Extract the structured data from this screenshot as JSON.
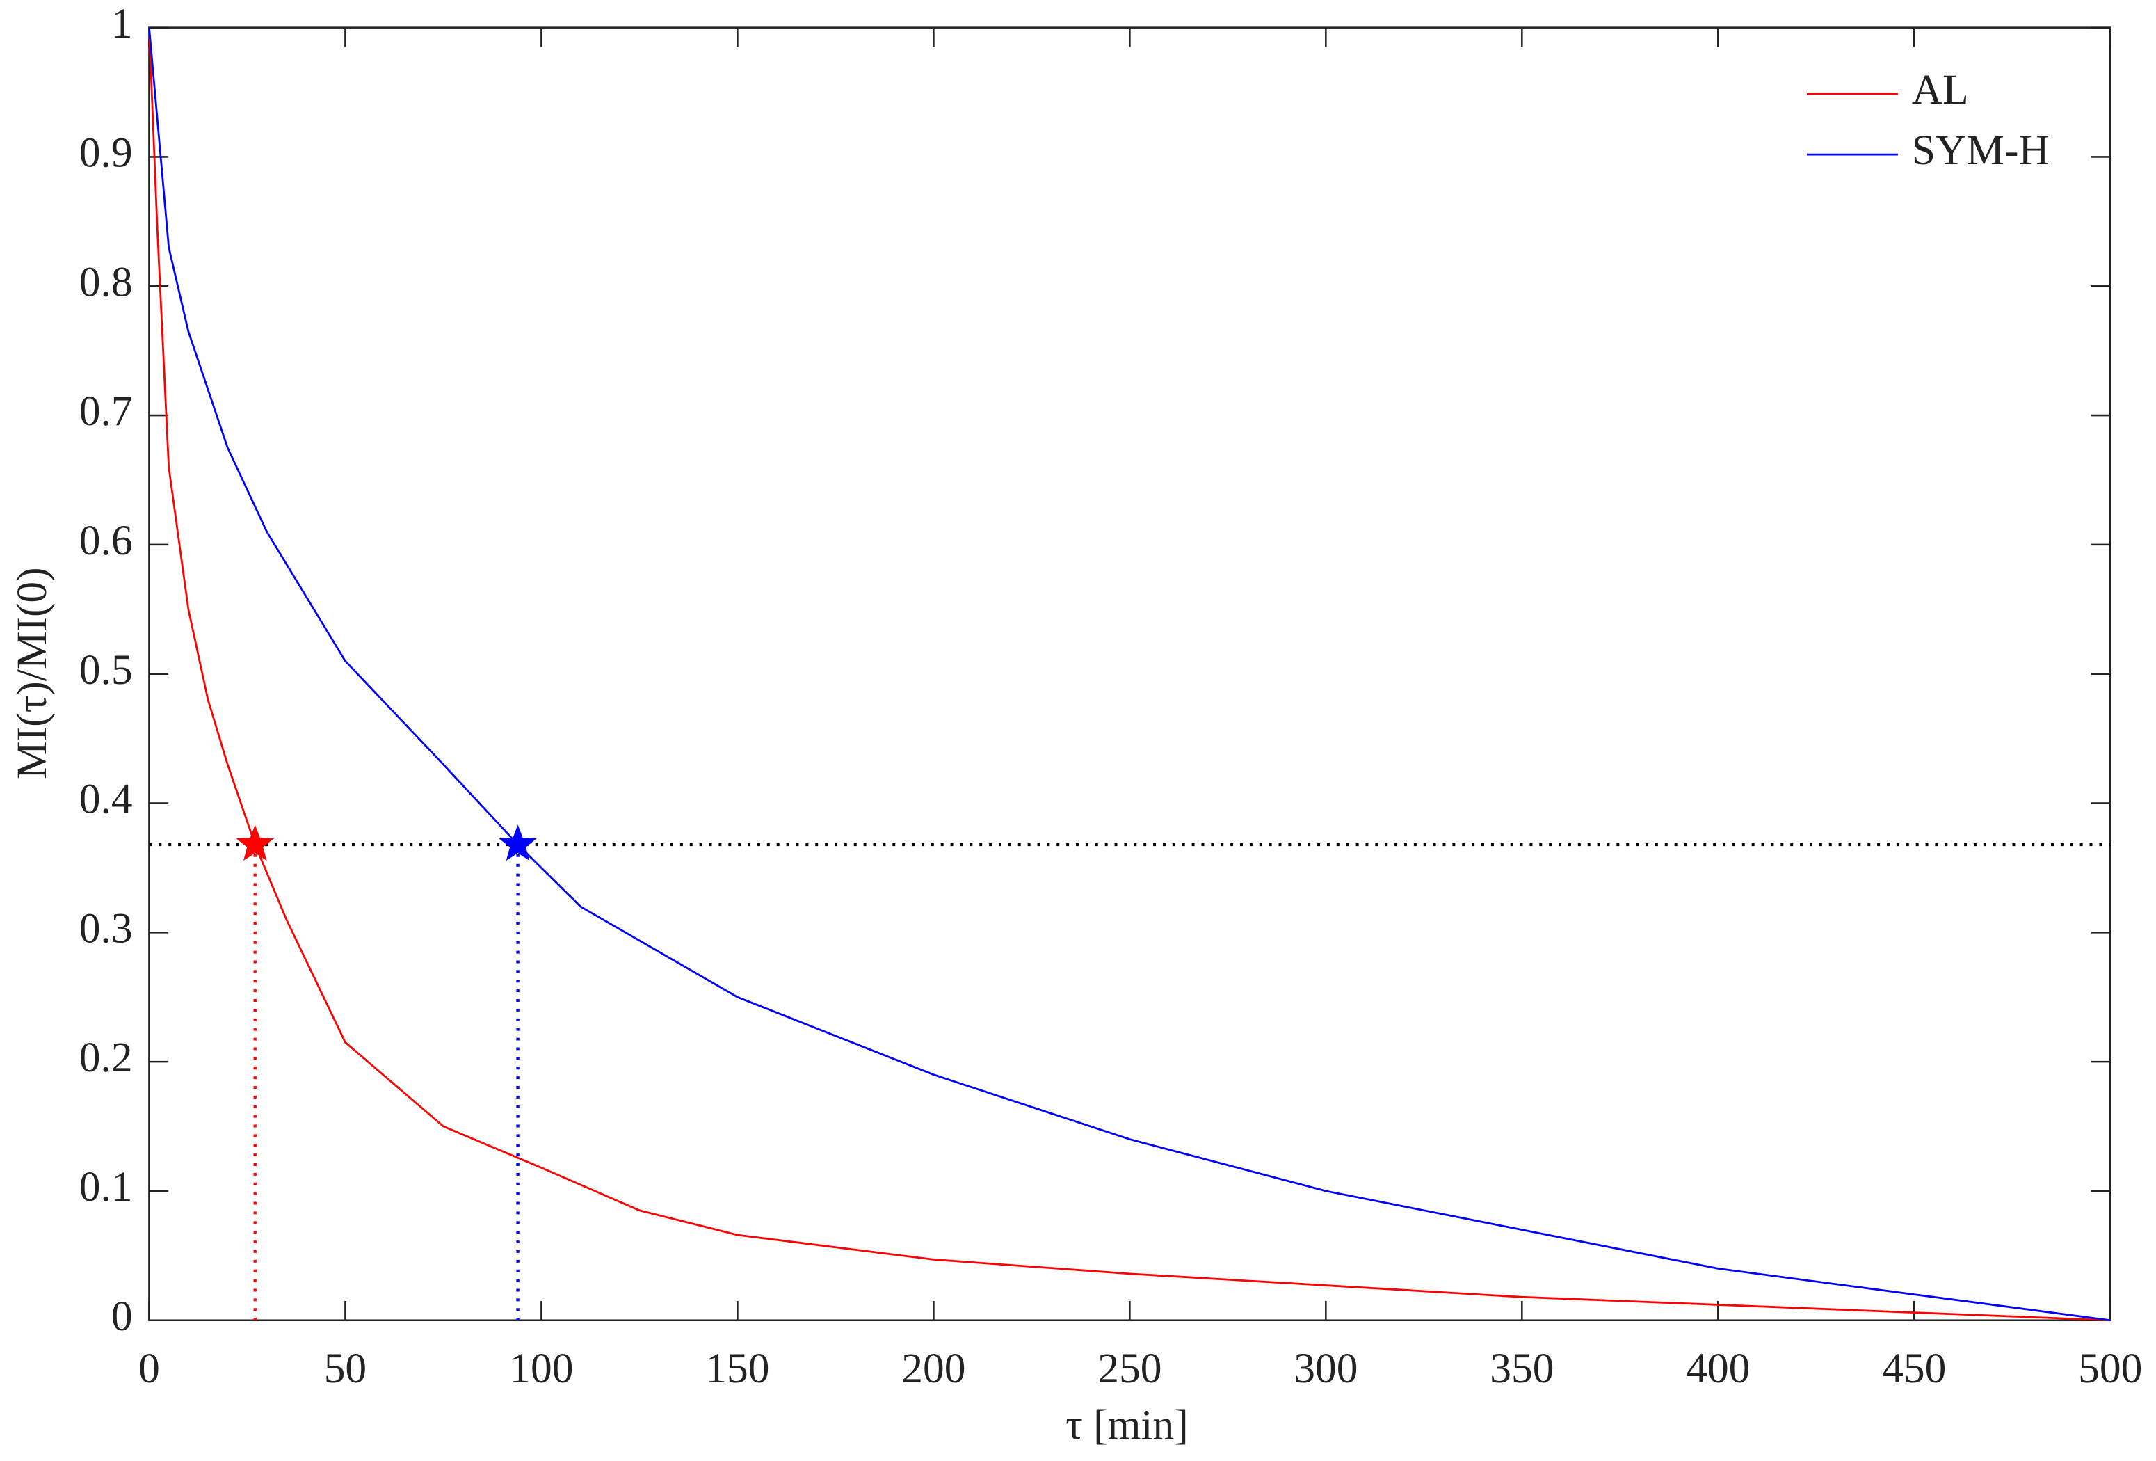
{
  "chart_data": {
    "type": "line",
    "x_label": "τ [min]",
    "y_label": "MI(τ)/MI(0)",
    "xlim": [
      0,
      500
    ],
    "ylim": [
      0,
      1
    ],
    "xticks": [
      0,
      50,
      100,
      150,
      200,
      250,
      300,
      350,
      400,
      450,
      500
    ],
    "yticks": [
      0,
      0.1,
      0.2,
      0.3,
      0.4,
      0.5,
      0.6,
      0.7,
      0.8,
      0.9,
      1
    ],
    "legend": "upper right",
    "series": [
      {
        "name": "AL",
        "color": "#ff0000",
        "x": [
          0,
          2,
          5,
          10,
          15,
          20,
          27,
          35,
          50,
          75,
          100,
          125,
          150,
          200,
          250,
          300,
          350,
          400,
          450,
          500
        ],
        "values": [
          1,
          0.85,
          0.66,
          0.55,
          0.48,
          0.43,
          0.368,
          0.31,
          0.215,
          0.15,
          0.118,
          0.085,
          0.066,
          0.047,
          0.036,
          0.027,
          0.018,
          0.012,
          0.006,
          0
        ]
      },
      {
        "name": "SYM-H",
        "color": "#0000ff",
        "x": [
          0,
          5,
          10,
          20,
          30,
          50,
          75,
          94,
          110,
          150,
          200,
          250,
          300,
          350,
          400,
          450,
          500
        ],
        "values": [
          1,
          0.83,
          0.765,
          0.675,
          0.61,
          0.51,
          0.43,
          0.368,
          0.32,
          0.25,
          0.19,
          0.14,
          0.1,
          0.07,
          0.04,
          0.02,
          0
        ]
      }
    ],
    "reference_line": {
      "y": 0.368,
      "color": "#000000"
    },
    "markers": [
      {
        "x": 27,
        "y": 0.368,
        "color": "#ff0000"
      },
      {
        "x": 94,
        "y": 0.368,
        "color": "#0000ff"
      }
    ]
  }
}
